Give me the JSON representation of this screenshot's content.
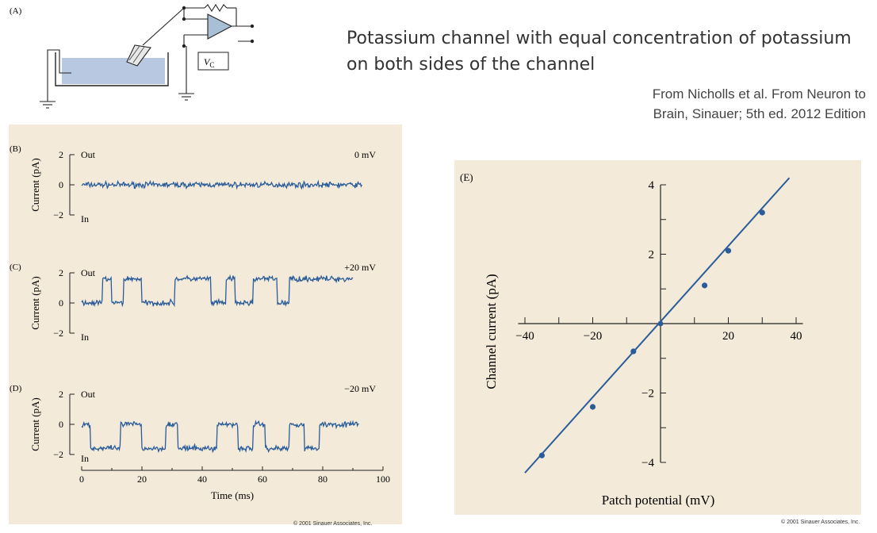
{
  "slide": {
    "title": "Potassium channel with equal concentration of potassium on both sides of the channel",
    "credit": "From Nicholls et al. From Neuron to Brain, Sinauer; 5th ed. 2012 Edition",
    "copyright_left": "© 2001 Sinauer Associates, Inc.",
    "copyright_right": "© 2001 Sinauer Associates, Inc.",
    "panel_bg": "#f3ead9",
    "trace_color": "#2a5c9a"
  },
  "panel_a": {
    "label": "(A)",
    "vc_label": "V",
    "vc_sub": "C",
    "bath_color": "#b8c8e0"
  },
  "traces": {
    "y_label": "Current (pA)",
    "x_label": "Time (ms)",
    "y_ticks": [
      "2",
      "0",
      "−2"
    ],
    "x_ticks": [
      "0",
      "20",
      "40",
      "60",
      "80",
      "100"
    ],
    "out_label": "Out",
    "in_label": "In"
  },
  "chart_data": [
    {
      "type": "line",
      "panel": "(B)",
      "annotation": "0 mV",
      "xlabel": "",
      "ylabel": "Current (pA)",
      "xlim": [
        0,
        100
      ],
      "ylim": [
        -2,
        2
      ],
      "x_range_recorded": [
        0,
        93
      ],
      "levels_pA": [
        0,
        0
      ],
      "series": [
        {
          "x": [
            0,
            93
          ],
          "values": [
            0,
            0
          ]
        }
      ]
    },
    {
      "type": "line",
      "panel": "(C)",
      "annotation": "+20 mV",
      "xlabel": "",
      "ylabel": "Current (pA)",
      "xlim": [
        0,
        100
      ],
      "ylim": [
        -2,
        2
      ],
      "levels_pA": [
        0,
        1.6
      ],
      "series": [
        {
          "x": [
            0,
            7,
            7,
            10,
            10,
            14,
            14,
            20,
            20,
            31,
            31,
            43,
            43,
            48,
            48,
            51,
            51,
            57,
            57,
            65,
            65,
            69,
            69,
            87,
            87,
            90
          ],
          "values": [
            0,
            0,
            1.6,
            1.6,
            0,
            0,
            1.6,
            1.6,
            0,
            0,
            1.6,
            1.6,
            0,
            0,
            1.6,
            1.6,
            0,
            0,
            1.6,
            1.6,
            0,
            0,
            1.6,
            1.6,
            1.6,
            1.6
          ]
        }
      ]
    },
    {
      "type": "line",
      "panel": "(D)",
      "annotation": "−20 mV",
      "xlabel": "Time (ms)",
      "ylabel": "Current (pA)",
      "xlim": [
        0,
        100
      ],
      "ylim": [
        -2,
        2
      ],
      "levels_pA": [
        0,
        -1.6
      ],
      "series": [
        {
          "x": [
            0,
            3,
            3,
            13,
            13,
            20,
            20,
            28,
            28,
            32,
            32,
            45,
            45,
            52,
            52,
            57,
            57,
            61,
            61,
            69,
            69,
            74,
            74,
            79,
            79,
            92
          ],
          "values": [
            0,
            0,
            -1.6,
            -1.6,
            0,
            0,
            -1.6,
            -1.6,
            0,
            0,
            -1.6,
            -1.6,
            0,
            0,
            -1.6,
            -1.6,
            0,
            0,
            -1.6,
            -1.6,
            0,
            0,
            -1.6,
            -1.6,
            0,
            0
          ]
        }
      ]
    },
    {
      "type": "scatter",
      "panel": "(E)",
      "title": "",
      "xlabel": "Patch potential (mV)",
      "ylabel": "Channel current (pA)",
      "xlim": [
        -40,
        40
      ],
      "ylim": [
        -4,
        4
      ],
      "x_ticks": [
        -40,
        -20,
        20,
        40
      ],
      "y_ticks": [
        4,
        2,
        -2,
        -4
      ],
      "x_tick_labels": [
        "−40",
        "−20",
        "20",
        "40"
      ],
      "y_tick_labels": [
        "4",
        "2",
        "−2",
        "−4"
      ],
      "points_x": [
        -35,
        -20,
        -8,
        13,
        20,
        30
      ],
      "points_y": [
        -3.8,
        -2.4,
        -0.8,
        1.1,
        2.1,
        3.2
      ],
      "fit_line": {
        "x": [
          -40,
          38
        ],
        "y": [
          -4.3,
          4.2
        ]
      }
    }
  ]
}
